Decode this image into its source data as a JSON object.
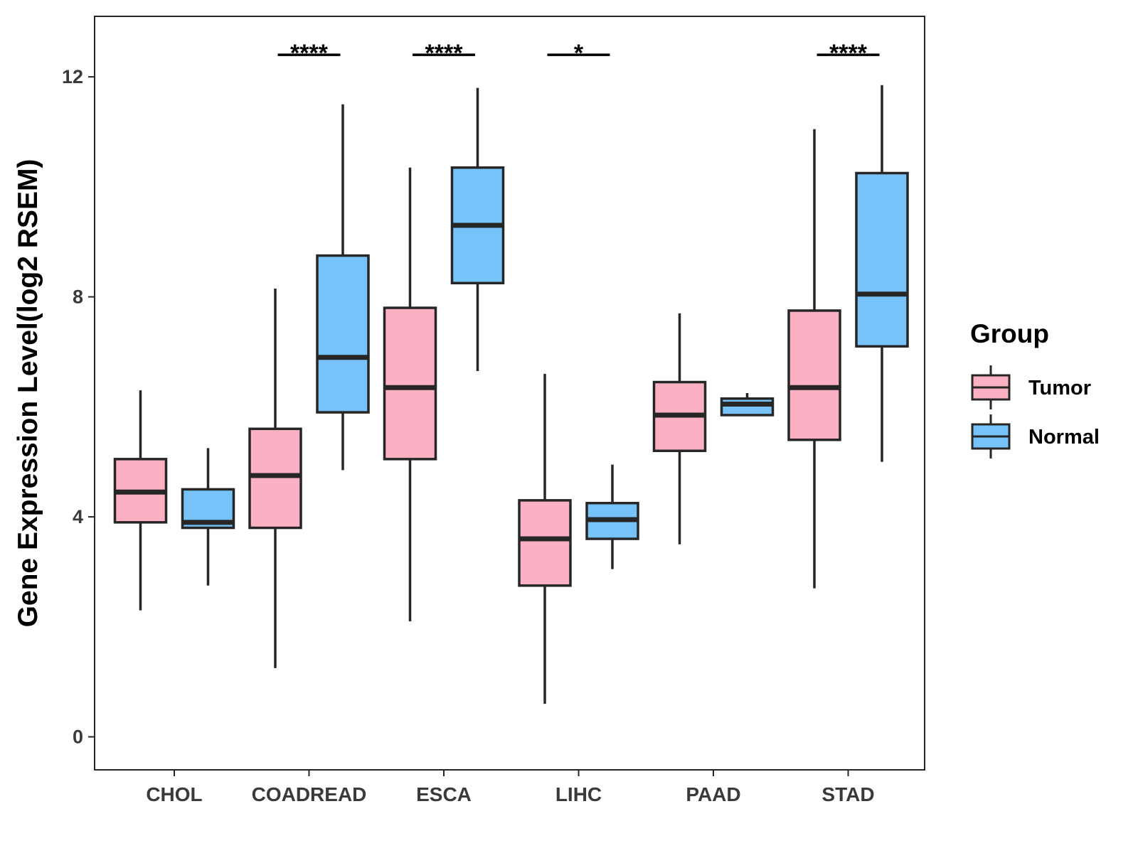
{
  "chart_data": {
    "type": "boxplot",
    "title": "",
    "xlabel": "",
    "ylabel": "Gene Expression Level(log2 RSEM)",
    "ylim": [
      -0.6,
      13.1
    ],
    "yticks": [
      0,
      4,
      8,
      12
    ],
    "grid": false,
    "categories": [
      "CHOL",
      "COADREAD",
      "ESCA",
      "LIHC",
      "PAAD",
      "STAD"
    ],
    "series": [
      {
        "name": "Tumor",
        "color": "#FBB1C3",
        "boxes": [
          {
            "whisker_low": 2.3,
            "q1": 3.9,
            "median": 4.45,
            "q3": 5.05,
            "whisker_high": 6.3
          },
          {
            "whisker_low": 1.25,
            "q1": 3.8,
            "median": 4.75,
            "q3": 5.6,
            "whisker_high": 8.15
          },
          {
            "whisker_low": 2.1,
            "q1": 5.05,
            "median": 6.35,
            "q3": 7.8,
            "whisker_high": 10.35
          },
          {
            "whisker_low": 0.6,
            "q1": 2.75,
            "median": 3.6,
            "q3": 4.3,
            "whisker_high": 6.6
          },
          {
            "whisker_low": 3.5,
            "q1": 5.2,
            "median": 5.85,
            "q3": 6.45,
            "whisker_high": 7.7
          },
          {
            "whisker_low": 2.7,
            "q1": 5.4,
            "median": 6.35,
            "q3": 7.75,
            "whisker_high": 11.05
          }
        ]
      },
      {
        "name": "Normal",
        "color": "#77C2F8",
        "boxes": [
          {
            "whisker_low": 2.75,
            "q1": 3.8,
            "median": 3.9,
            "q3": 4.5,
            "whisker_high": 5.25
          },
          {
            "whisker_low": 4.85,
            "q1": 5.9,
            "median": 6.9,
            "q3": 8.75,
            "whisker_high": 11.5
          },
          {
            "whisker_low": 6.65,
            "q1": 8.25,
            "median": 9.3,
            "q3": 10.35,
            "whisker_high": 11.8
          },
          {
            "whisker_low": 3.05,
            "q1": 3.6,
            "median": 3.95,
            "q3": 4.25,
            "whisker_high": 4.95
          },
          {
            "whisker_low": 5.85,
            "q1": 5.85,
            "median": 6.05,
            "q3": 6.15,
            "whisker_high": 6.25
          },
          {
            "whisker_low": 5.0,
            "q1": 7.1,
            "median": 8.05,
            "q3": 10.25,
            "whisker_high": 11.85
          }
        ]
      }
    ],
    "significance": [
      {
        "category": "COADREAD",
        "label": "****"
      },
      {
        "category": "ESCA",
        "label": "****"
      },
      {
        "category": "LIHC",
        "label": "*"
      },
      {
        "category": "STAD",
        "label": "****"
      }
    ],
    "legend": {
      "title": "Group",
      "position": "right",
      "entries": [
        "Tumor",
        "Normal"
      ]
    }
  }
}
